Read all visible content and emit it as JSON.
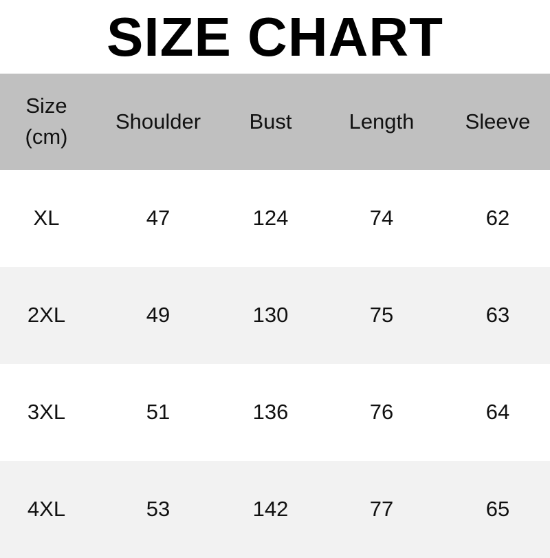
{
  "title": "SIZE CHART",
  "header": {
    "size_line1": "Size",
    "size_line2": "(cm)",
    "columns": [
      "Shoulder",
      "Bust",
      "Length",
      "Sleeve"
    ]
  },
  "rows": [
    {
      "size": "XL",
      "values": [
        "47",
        "124",
        "74",
        "62"
      ]
    },
    {
      "size": "2XL",
      "values": [
        "49",
        "130",
        "75",
        "63"
      ]
    },
    {
      "size": "3XL",
      "values": [
        "51",
        "136",
        "76",
        "64"
      ]
    },
    {
      "size": "4XL",
      "values": [
        "53",
        "142",
        "77",
        "65"
      ]
    }
  ],
  "colors": {
    "header_bg": "#c0c0c0",
    "alt_row_bg": "#f2f2f2"
  }
}
